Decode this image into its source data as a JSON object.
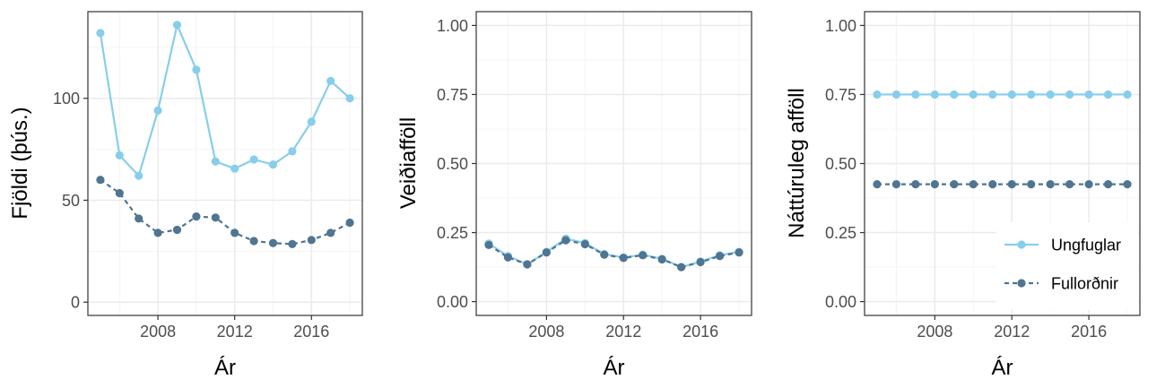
{
  "colors": {
    "ungfuglar": "#87CEEB",
    "fullordnir": "#4F7592",
    "grid_major": "#ebebeb",
    "grid_minor": "#f4f4f4",
    "border": "#333333"
  },
  "legend": {
    "placement": "bottom-right of third panel",
    "items": [
      "Ungfuglar",
      "Fullorðnir"
    ]
  },
  "chart_data": [
    {
      "type": "line",
      "xlabel": "Ár",
      "ylabel": "Fjöldi (þús.)",
      "xlim": [
        2004.35,
        2018.65
      ],
      "ylim": [
        -6.5,
        142.5
      ],
      "xticks": [
        2008,
        2012,
        2016
      ],
      "xtick_labels": [
        "2008",
        "2012",
        "2016"
      ],
      "yticks": [
        0,
        50,
        100
      ],
      "ytick_labels": [
        "0",
        "50",
        "100"
      ],
      "grid": true,
      "x": [
        2005,
        2006,
        2007,
        2008,
        2009,
        2010,
        2011,
        2012,
        2013,
        2014,
        2015,
        2016,
        2017,
        2018
      ],
      "series": [
        {
          "name": "Ungfuglar",
          "linestyle": "solid",
          "values": [
            132,
            72,
            62,
            94,
            136,
            114,
            69,
            65.5,
            70,
            67.5,
            74,
            88.5,
            108.5,
            100
          ]
        },
        {
          "name": "Fullorðnir",
          "linestyle": "dashed",
          "values": [
            60,
            53.5,
            41,
            34,
            35.5,
            42,
            41.5,
            34,
            30,
            29,
            28.5,
            30.5,
            34,
            39
          ]
        }
      ]
    },
    {
      "type": "line",
      "xlabel": "Ár",
      "ylabel": "Veiðiafföll",
      "xlim": [
        2004.35,
        2018.65
      ],
      "ylim": [
        -0.05,
        1.05
      ],
      "xticks": [
        2008,
        2012,
        2016
      ],
      "xtick_labels": [
        "2008",
        "2012",
        "2016"
      ],
      "yticks": [
        0,
        0.25,
        0.5,
        0.75,
        1
      ],
      "ytick_labels": [
        "0.00",
        "0.25",
        "0.50",
        "0.75",
        "1.00"
      ],
      "grid": true,
      "x": [
        2005,
        2006,
        2007,
        2008,
        2009,
        2010,
        2011,
        2012,
        2013,
        2014,
        2015,
        2016,
        2017,
        2018
      ],
      "series": [
        {
          "name": "Ungfuglar",
          "linestyle": "solid",
          "values": [
            0.21,
            0.165,
            0.135,
            0.18,
            0.228,
            0.212,
            0.172,
            0.16,
            0.17,
            0.155,
            0.125,
            0.145,
            0.168,
            0.18
          ]
        },
        {
          "name": "Fullorðnir",
          "linestyle": "dashed",
          "values": [
            0.205,
            0.16,
            0.135,
            0.178,
            0.222,
            0.208,
            0.17,
            0.158,
            0.168,
            0.153,
            0.125,
            0.143,
            0.165,
            0.178
          ]
        }
      ]
    },
    {
      "type": "line",
      "xlabel": "Ár",
      "ylabel": "Náttúruleg afföll",
      "xlim": [
        2004.35,
        2018.65
      ],
      "ylim": [
        -0.05,
        1.05
      ],
      "xticks": [
        2008,
        2012,
        2016
      ],
      "xtick_labels": [
        "2008",
        "2012",
        "2016"
      ],
      "yticks": [
        0,
        0.25,
        0.5,
        0.75,
        1
      ],
      "ytick_labels": [
        "0.00",
        "0.25",
        "0.50",
        "0.75",
        "1.00"
      ],
      "grid": true,
      "x": [
        2005,
        2006,
        2007,
        2008,
        2009,
        2010,
        2011,
        2012,
        2013,
        2014,
        2015,
        2016,
        2017,
        2018
      ],
      "series": [
        {
          "name": "Ungfuglar",
          "linestyle": "solid",
          "values": [
            0.75,
            0.75,
            0.75,
            0.75,
            0.75,
            0.75,
            0.75,
            0.75,
            0.75,
            0.75,
            0.75,
            0.75,
            0.75,
            0.75
          ]
        },
        {
          "name": "Fullorðnir",
          "linestyle": "dashed",
          "values": [
            0.425,
            0.425,
            0.425,
            0.425,
            0.425,
            0.425,
            0.425,
            0.425,
            0.425,
            0.425,
            0.425,
            0.425,
            0.425,
            0.425
          ]
        }
      ]
    }
  ]
}
